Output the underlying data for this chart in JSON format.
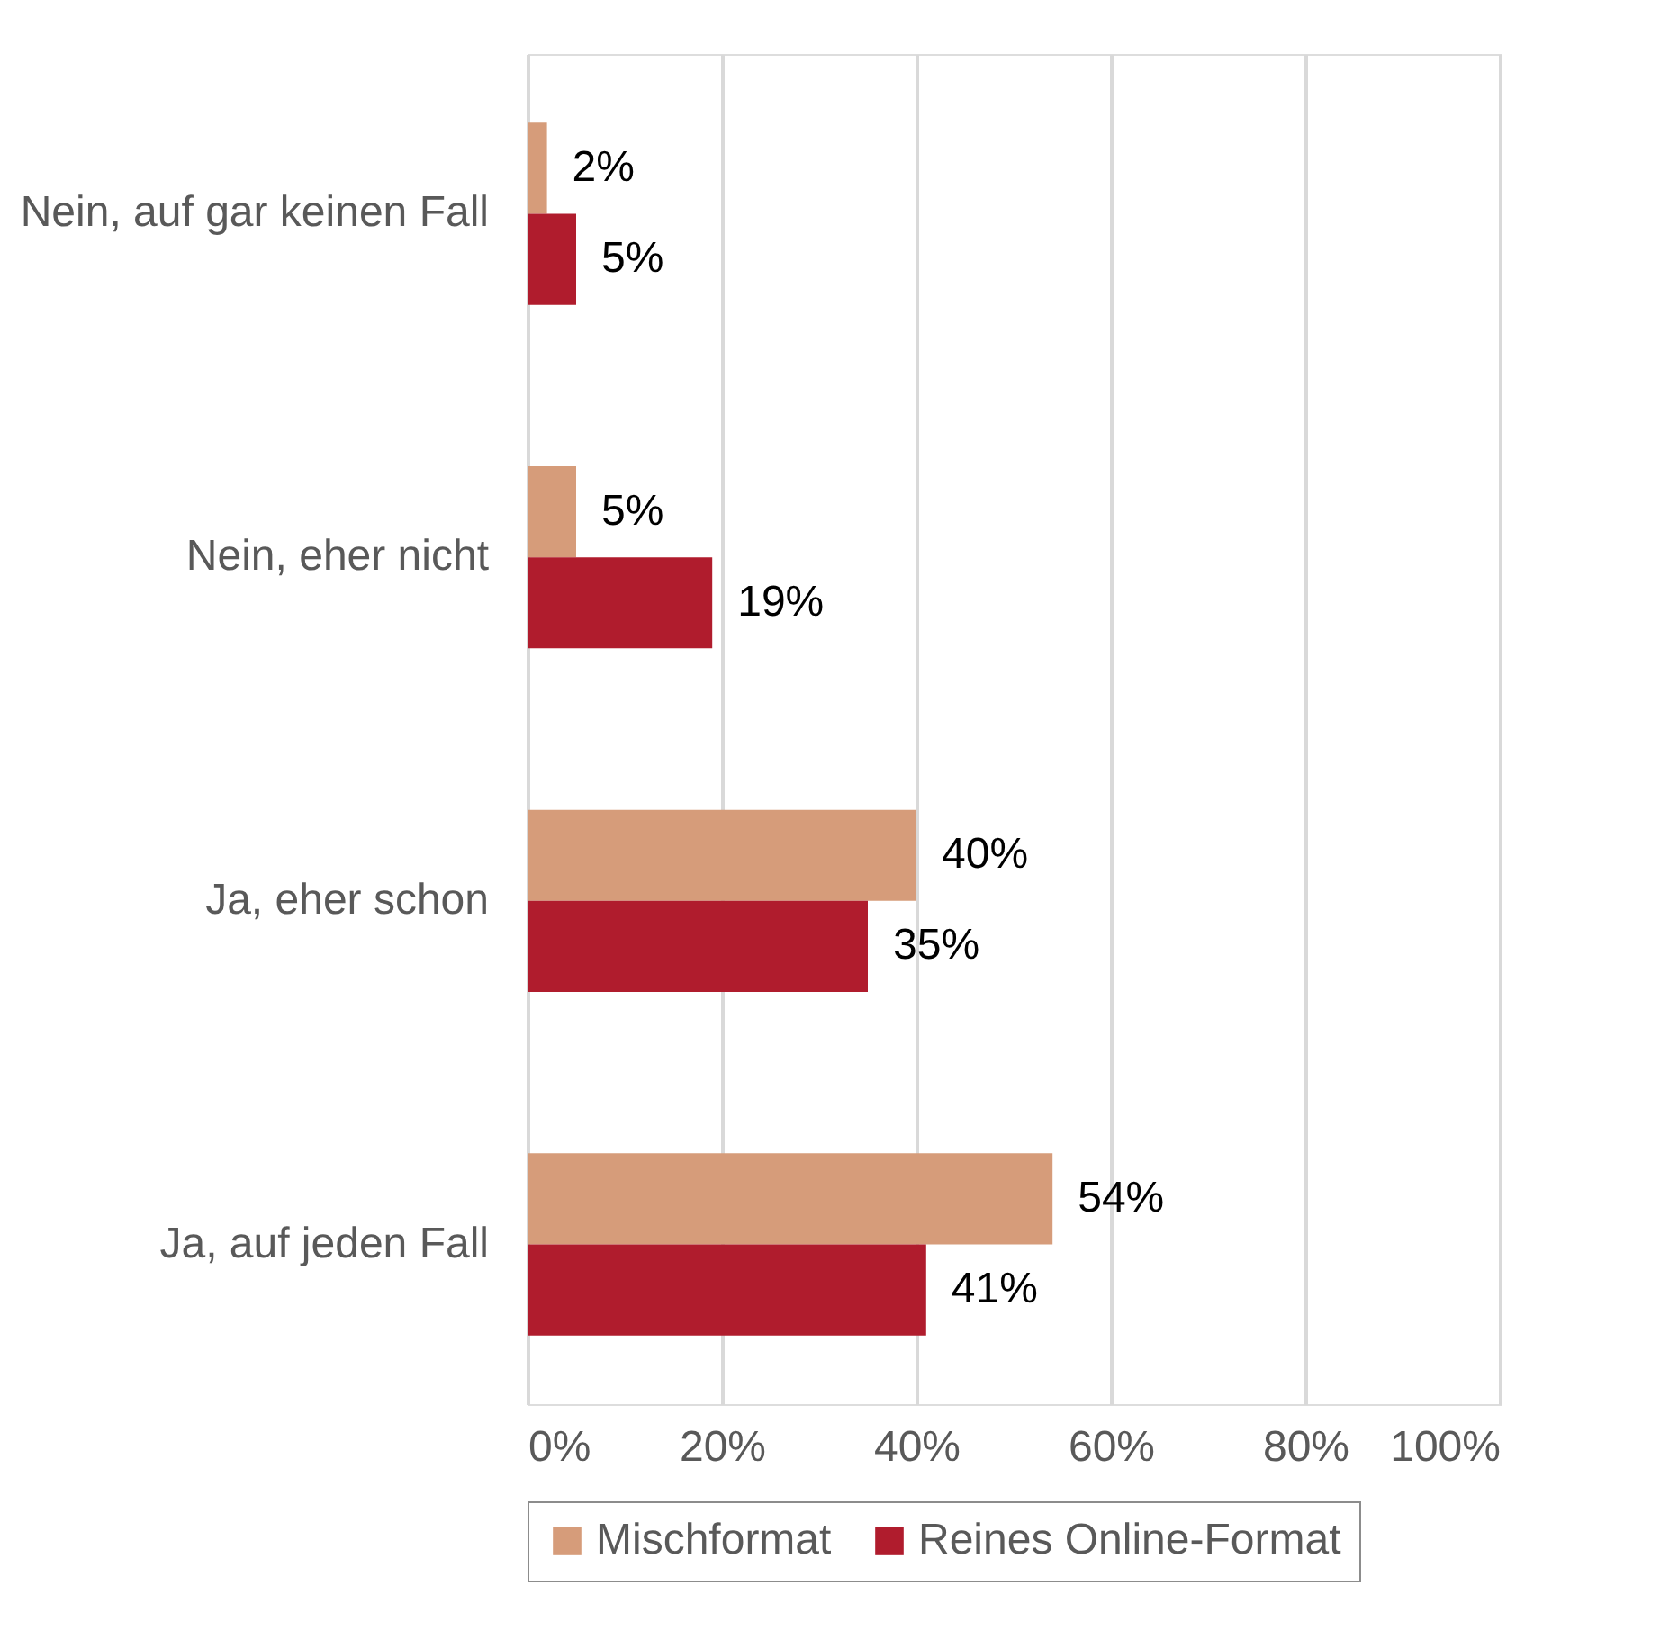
{
  "chart_data": {
    "type": "bar",
    "orientation": "horizontal",
    "categories": [
      "Nein, auf gar keinen Fall",
      "Nein, eher nicht",
      "Ja, eher schon",
      "Ja, auf jeden Fall"
    ],
    "series": [
      {
        "name": "Mischformat",
        "color": "#d69c7a",
        "values": [
          2,
          5,
          40,
          54
        ],
        "value_labels": [
          "2%",
          "5%",
          "40%",
          "54%"
        ]
      },
      {
        "name": "Reines Online-Format",
        "color": "#b01c2d",
        "values": [
          5,
          19,
          35,
          41
        ],
        "value_labels": [
          "5%",
          "19%",
          "35%",
          "41%"
        ]
      }
    ],
    "xlim": [
      0,
      100
    ],
    "xticks": [
      {
        "value": 0,
        "label": "0%"
      },
      {
        "value": 20,
        "label": "20%"
      },
      {
        "value": 40,
        "label": "40%"
      },
      {
        "value": 60,
        "label": "60%"
      },
      {
        "value": 80,
        "label": "80%"
      },
      {
        "value": 100,
        "label": "100%"
      }
    ],
    "grid": "x",
    "legend": "bottom"
  }
}
